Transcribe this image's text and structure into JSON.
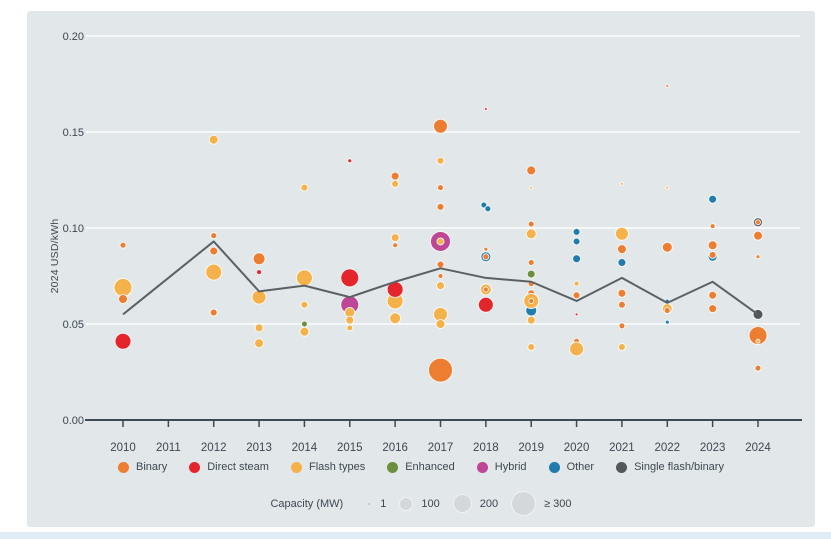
{
  "colors": {
    "panel_bg": "#E2E7E9",
    "grid_line": "#F5F8F9",
    "axis": "#3E4A52",
    "text": "#3C4852",
    "trend_line": "#5A6166",
    "bubble_stroke": "rgba(255,255,255,0.85)"
  },
  "legend": {
    "items": [
      {
        "id": "binary",
        "label": "Binary",
        "color": "#ED7D31"
      },
      {
        "id": "direct",
        "label": "Direct steam",
        "color": "#E5252C"
      },
      {
        "id": "flash",
        "label": "Flash types",
        "color": "#F5B14A"
      },
      {
        "id": "enhanced",
        "label": "Enhanced",
        "color": "#6B8F3C"
      },
      {
        "id": "hybrid",
        "label": "Hybrid",
        "color": "#BE4694"
      },
      {
        "id": "other",
        "label": "Other",
        "color": "#1F7CAD"
      },
      {
        "id": "single",
        "label": "Single flash/binary",
        "color": "#53575A"
      }
    ]
  },
  "capacity_legend": {
    "label": "Capacity (MW)",
    "items": [
      {
        "label": "1",
        "d": 4
      },
      {
        "label": "100",
        "d": 12
      },
      {
        "label": "200",
        "d": 17
      },
      {
        "label": "≥ 300",
        "d": 23
      }
    ]
  },
  "chart_data": {
    "type": "scatter",
    "subtype": "bubble-with-trend-line",
    "title": "",
    "ylabel": "2024 USD/kWh",
    "xlabel": "",
    "ylim": [
      0.0,
      0.21
    ],
    "y_ticks": [
      "0.00",
      "0.05",
      "0.10",
      "0.15",
      "0.20"
    ],
    "grid": "horizontal white gridlines",
    "legend_position": "bottom",
    "categories": [
      2010,
      2011,
      2012,
      2013,
      2014,
      2015,
      2016,
      2017,
      2018,
      2019,
      2020,
      2021,
      2022,
      2023,
      2024
    ],
    "trend_line": {
      "name": "weighted-average",
      "values": [
        0.055,
        0.074,
        0.093,
        0.067,
        0.07,
        0.064,
        0.072,
        0.079,
        0.074,
        0.072,
        0.062,
        0.074,
        0.061,
        0.072,
        0.055
      ]
    },
    "points": [
      {
        "year": 2010,
        "value": 0.091,
        "type": "binary",
        "r": 3
      },
      {
        "year": 2010,
        "value": 0.069,
        "type": "flash",
        "r": 9
      },
      {
        "year": 2010,
        "value": 0.063,
        "type": "binary",
        "r": 4.5
      },
      {
        "year": 2010,
        "value": 0.041,
        "type": "direct",
        "r": 8
      },
      {
        "year": 2012,
        "value": 0.146,
        "type": "flash",
        "r": 4.5
      },
      {
        "year": 2012,
        "value": 0.096,
        "type": "binary",
        "r": 3
      },
      {
        "year": 2012,
        "value": 0.088,
        "type": "binary",
        "r": 4
      },
      {
        "year": 2012,
        "value": 0.077,
        "type": "flash",
        "r": 8
      },
      {
        "year": 2012,
        "value": 0.056,
        "type": "binary",
        "r": 3.5
      },
      {
        "year": 2013,
        "value": 0.084,
        "type": "binary",
        "r": 6
      },
      {
        "year": 2013,
        "value": 0.077,
        "type": "direct",
        "r": 2.5
      },
      {
        "year": 2013,
        "value": 0.064,
        "type": "flash",
        "r": 7
      },
      {
        "year": 2013,
        "value": 0.048,
        "type": "flash",
        "r": 4
      },
      {
        "year": 2013,
        "value": 0.04,
        "type": "flash",
        "r": 4.5
      },
      {
        "year": 2014,
        "value": 0.121,
        "type": "flash",
        "r": 3.5
      },
      {
        "year": 2014,
        "value": 0.074,
        "type": "flash",
        "r": 8
      },
      {
        "year": 2014,
        "value": 0.06,
        "type": "flash",
        "r": 3.5
      },
      {
        "year": 2014,
        "value": 0.05,
        "type": "enhanced",
        "r": 3
      },
      {
        "year": 2014,
        "value": 0.046,
        "type": "flash",
        "r": 4.5
      },
      {
        "year": 2015,
        "value": 0.135,
        "type": "direct",
        "r": 2
      },
      {
        "year": 2015,
        "value": 0.074,
        "type": "direct",
        "r": 9
      },
      {
        "year": 2015,
        "value": 0.06,
        "type": "hybrid",
        "r": 9
      },
      {
        "year": 2015,
        "value": 0.056,
        "type": "flash",
        "r": 5
      },
      {
        "year": 2015,
        "value": 0.052,
        "type": "flash",
        "r": 4
      },
      {
        "year": 2015,
        "value": 0.048,
        "type": "flash",
        "r": 3
      },
      {
        "year": 2016,
        "value": 0.123,
        "type": "flash",
        "r": 3.5
      },
      {
        "year": 2016,
        "value": 0.127,
        "type": "binary",
        "r": 4
      },
      {
        "year": 2016,
        "value": 0.095,
        "type": "flash",
        "r": 4
      },
      {
        "year": 2016,
        "value": 0.091,
        "type": "binary",
        "r": 2.5
      },
      {
        "year": 2016,
        "value": 0.062,
        "type": "flash",
        "r": 8
      },
      {
        "year": 2016,
        "value": 0.068,
        "type": "direct",
        "r": 8
      },
      {
        "year": 2016,
        "value": 0.053,
        "type": "flash",
        "r": 5.5
      },
      {
        "year": 2017,
        "value": 0.153,
        "type": "binary",
        "r": 7
      },
      {
        "year": 2017,
        "value": 0.135,
        "type": "flash",
        "r": 3.5
      },
      {
        "year": 2017,
        "value": 0.121,
        "type": "binary",
        "r": 3
      },
      {
        "year": 2017,
        "value": 0.111,
        "type": "binary",
        "r": 3.5
      },
      {
        "year": 2017,
        "value": 0.093,
        "type": "hybrid",
        "r": 10
      },
      {
        "year": 2017,
        "value": 0.093,
        "type": "flash",
        "r": 3.5
      },
      {
        "year": 2017,
        "value": 0.081,
        "type": "binary",
        "r": 3.5
      },
      {
        "year": 2017,
        "value": 0.075,
        "type": "binary",
        "r": 2.5
      },
      {
        "year": 2017,
        "value": 0.07,
        "type": "flash",
        "r": 4
      },
      {
        "year": 2017,
        "value": 0.055,
        "type": "flash",
        "r": 7
      },
      {
        "year": 2017,
        "value": 0.05,
        "type": "flash",
        "r": 4.5
      },
      {
        "year": 2017,
        "value": 0.026,
        "type": "binary",
        "r": 12
      },
      {
        "year": 2018,
        "value": 0.162,
        "type": "direct",
        "r": 1.5
      },
      {
        "year": 2018,
        "value": 0.112,
        "type": "other",
        "r": 3,
        "dx": -2
      },
      {
        "year": 2018,
        "value": 0.11,
        "type": "other",
        "r": 3,
        "dx": 2
      },
      {
        "year": 2018,
        "value": 0.085,
        "type": "other",
        "r": 5
      },
      {
        "year": 2018,
        "value": 0.089,
        "type": "binary",
        "r": 2
      },
      {
        "year": 2018,
        "value": 0.085,
        "type": "binary",
        "r": 3
      },
      {
        "year": 2018,
        "value": 0.068,
        "type": "flash",
        "r": 5.5
      },
      {
        "year": 2018,
        "value": 0.068,
        "type": "binary",
        "r": 2.5
      },
      {
        "year": 2018,
        "value": 0.06,
        "type": "direct",
        "r": 7.5
      },
      {
        "year": 2019,
        "value": 0.13,
        "type": "binary",
        "r": 4.5
      },
      {
        "year": 2019,
        "value": 0.121,
        "type": "flash",
        "r": 1.5
      },
      {
        "year": 2019,
        "value": 0.102,
        "type": "binary",
        "r": 3
      },
      {
        "year": 2019,
        "value": 0.097,
        "type": "flash",
        "r": 5
      },
      {
        "year": 2019,
        "value": 0.082,
        "type": "binary",
        "r": 3
      },
      {
        "year": 2019,
        "value": 0.076,
        "type": "enhanced",
        "r": 4
      },
      {
        "year": 2019,
        "value": 0.071,
        "type": "binary",
        "r": 3
      },
      {
        "year": 2019,
        "value": 0.066,
        "type": "binary",
        "r": 3.5
      },
      {
        "year": 2019,
        "value": 0.057,
        "type": "other",
        "r": 5.5
      },
      {
        "year": 2019,
        "value": 0.062,
        "type": "flash",
        "r": 7.5
      },
      {
        "year": 2019,
        "value": 0.062,
        "type": "binary",
        "r": 2.5
      },
      {
        "year": 2019,
        "value": 0.052,
        "type": "flash",
        "r": 4
      },
      {
        "year": 2019,
        "value": 0.038,
        "type": "flash",
        "r": 3.5
      },
      {
        "year": 2020,
        "value": 0.098,
        "type": "other",
        "r": 3.5
      },
      {
        "year": 2020,
        "value": 0.093,
        "type": "other",
        "r": 3.5
      },
      {
        "year": 2020,
        "value": 0.084,
        "type": "other",
        "r": 4
      },
      {
        "year": 2020,
        "value": 0.071,
        "type": "flash",
        "r": 2.5
      },
      {
        "year": 2020,
        "value": 0.065,
        "type": "binary",
        "r": 3.5
      },
      {
        "year": 2020,
        "value": 0.055,
        "type": "direct",
        "r": 1.5
      },
      {
        "year": 2020,
        "value": 0.041,
        "type": "binary",
        "r": 3
      },
      {
        "year": 2020,
        "value": 0.037,
        "type": "flash",
        "r": 7
      },
      {
        "year": 2021,
        "value": 0.123,
        "type": "flash",
        "r": 1.5
      },
      {
        "year": 2021,
        "value": 0.097,
        "type": "flash",
        "r": 6.5
      },
      {
        "year": 2021,
        "value": 0.089,
        "type": "binary",
        "r": 4.5
      },
      {
        "year": 2021,
        "value": 0.082,
        "type": "other",
        "r": 4
      },
      {
        "year": 2021,
        "value": 0.066,
        "type": "binary",
        "r": 4
      },
      {
        "year": 2021,
        "value": 0.06,
        "type": "binary",
        "r": 3.5
      },
      {
        "year": 2021,
        "value": 0.049,
        "type": "binary",
        "r": 3
      },
      {
        "year": 2021,
        "value": 0.038,
        "type": "flash",
        "r": 3.5
      },
      {
        "year": 2022,
        "value": 0.174,
        "type": "binary",
        "r": 1.5
      },
      {
        "year": 2022,
        "value": 0.121,
        "type": "flash",
        "r": 1.5
      },
      {
        "year": 2022,
        "value": 0.09,
        "type": "binary",
        "r": 5
      },
      {
        "year": 2022,
        "value": 0.062,
        "type": "other",
        "r": 2
      },
      {
        "year": 2022,
        "value": 0.058,
        "type": "flash",
        "r": 5
      },
      {
        "year": 2022,
        "value": 0.057,
        "type": "binary",
        "r": 3
      },
      {
        "year": 2022,
        "value": 0.051,
        "type": "other",
        "r": 2
      },
      {
        "year": 2023,
        "value": 0.115,
        "type": "other",
        "r": 4
      },
      {
        "year": 2023,
        "value": 0.101,
        "type": "binary",
        "r": 2.5
      },
      {
        "year": 2023,
        "value": 0.085,
        "type": "other",
        "r": 4.5
      },
      {
        "year": 2023,
        "value": 0.091,
        "type": "binary",
        "r": 4.5
      },
      {
        "year": 2023,
        "value": 0.086,
        "type": "binary",
        "r": 3.5
      },
      {
        "year": 2023,
        "value": 0.065,
        "type": "binary",
        "r": 4
      },
      {
        "year": 2023,
        "value": 0.058,
        "type": "binary",
        "r": 4
      },
      {
        "year": 2024,
        "value": 0.103,
        "type": "single",
        "r": 4.5
      },
      {
        "year": 2024,
        "value": 0.103,
        "type": "binary",
        "r": 2.5
      },
      {
        "year": 2024,
        "value": 0.096,
        "type": "binary",
        "r": 4.5
      },
      {
        "year": 2024,
        "value": 0.085,
        "type": "binary",
        "r": 2
      },
      {
        "year": 2024,
        "value": 0.055,
        "type": "single",
        "r": 5
      },
      {
        "year": 2024,
        "value": 0.044,
        "type": "binary",
        "r": 9
      },
      {
        "year": 2024,
        "value": 0.041,
        "type": "flash",
        "r": 2
      },
      {
        "year": 2024,
        "value": 0.027,
        "type": "binary",
        "r": 3
      }
    ]
  }
}
